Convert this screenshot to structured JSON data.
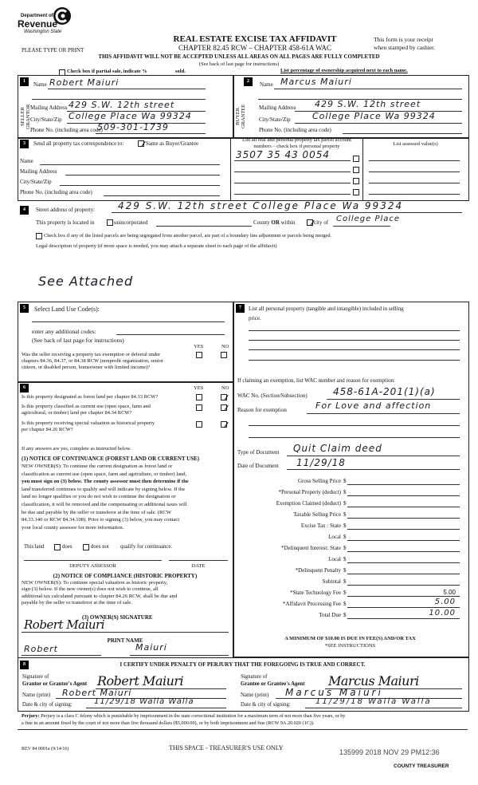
{
  "header": {
    "logo": {
      "line1": "Department of",
      "line2": "Revenue",
      "line3": "Washington State"
    },
    "title": "REAL ESTATE EXCISE TAX AFFIDAVIT",
    "subtitle": "CHAPTER 82.45 RCW – CHAPTER 458-61A WAC",
    "please_type": "PLEASE TYPE OR PRINT",
    "receipt_line1": "This form is your receipt",
    "receipt_line2": "when stamped by cashier.",
    "warning": "THIS AFFIDAVIT WILL NOT BE ACCEPTED UNLESS ALL AREAS ON ALL PAGES ARE FULLY COMPLETED",
    "see_back": "(See back of last page for instructions)",
    "partial_sale": "Check box if partial sale, indicate %",
    "sold": "sold.",
    "ownership_note": "List percentage of ownership acquired next to each name."
  },
  "section1": {
    "number": "1",
    "side_label_1": "SELLER",
    "side_label_2": "GRANTOR",
    "name_label": "Name",
    "name": "Robert Maiuri",
    "mailing_label": "Mailing Address",
    "mailing": "429 S.W. 12th street",
    "city_label": "City/State/Zip",
    "city": "College Place Wa 99324",
    "phone_label": "Phone No. (including area code)",
    "phone": "509-301-1739"
  },
  "section2": {
    "number": "2",
    "side_label_1": "BUYER",
    "side_label_2": "GRANTEE",
    "name_label": "Name",
    "name": "Marcus Maiuri",
    "mailing_label": "Mailing Address",
    "mailing": "429 S.W. 12th street",
    "city_label": "City/State/Zip",
    "city": "College Place Wa 99324",
    "phone_label": "Phone No. (including area code)"
  },
  "section3": {
    "number": "3",
    "send_label": "Send all property tax correspondence to:",
    "same_as_label": "Same as Buyer/Grantee",
    "same_as_checked": true,
    "name_label": "Name",
    "mailing_label": "Mailing Address",
    "city_label": "City/State/Zip",
    "phone_label": "Phone No. (including area code)",
    "parcel_header_1": "List all real and personal property tax parcel account",
    "parcel_header_2": "numbers – check box if personal property",
    "parcels": [
      "3507 35 43 0054",
      "",
      "",
      ""
    ],
    "assessed_header": "List assessed value(s)"
  },
  "section4": {
    "number": "4",
    "street_label": "Street address of property:",
    "street": "429 S.W. 12th street College Place Wa 99324",
    "located_label": "This property is located in",
    "unincorporated_label": "unincorporated",
    "county_label": "County",
    "or_label": "OR",
    "within_label": "within",
    "city_of_label": "city of",
    "city_checked": true,
    "city": "College Place",
    "segregated_label": "Check box if any of the listed parcels are being segregated from another parcel, are part of a boundary line adjustment or parcels being merged.",
    "legal_label": "Legal description of property (if more space is needed, you may attach a separate sheet to each page of the affidavit)",
    "legal": "See Attached"
  },
  "section5": {
    "number": "5",
    "title": "Select Land Use Code(s):",
    "additional_label": "enter any additional codes:",
    "see_back": "(See back of last page for instructions)",
    "yes": "YES",
    "no": "NO",
    "question_lines": [
      "Was the seller receiving a property tax exemption or deferral under",
      "chapters 84.36, 84.37, or 84.38 RCW (nonprofit organization, senior",
      "citizen, or disabled person, homeowner with limited income)?"
    ]
  },
  "section6": {
    "number": "6",
    "yes": "YES",
    "no": "NO",
    "questions": [
      {
        "lines": [
          "Is this property designated as forest land per chapter 84.33 RCW?"
        ],
        "answer": "no"
      },
      {
        "lines": [
          "Is this property classified as current use (open space, farm and",
          "agricultural, or timber) land per chapter 84.34 RCW?"
        ],
        "answer": "no"
      },
      {
        "lines": [
          "Is this property receiving special valuation as historical property",
          "per chapter 84.26 RCW?"
        ],
        "answer": "no"
      }
    ],
    "if_yes": "If any answers are yes, complete as instructed below.",
    "notice1_title": "(1) NOTICE OF CONTINUANCE  (FOREST LAND OR CURRENT USE)",
    "notice1_lines": [
      "NEW OWNER(S): To continue the current designation as forest land or",
      "classification as current use (open space, farm and agriculture, or timber) land,",
      "you must sign on (3) below. The county assessor must then determine if the",
      "land transferred continues to qualify and will indicate by signing below. If the",
      "land no longer qualifies or you do not wish to continue the designation or",
      "classification, it will be removed and the compensating or additional taxes will",
      "be due and payable by the seller or transferor at the time of sale. (RCW",
      "84.33.140 or RCW 84.34.108). Prior to signing (3) below, you may contact",
      "your local county assessor for more information."
    ],
    "this_land": "This land",
    "does": "does",
    "does_not": "does not",
    "qualify": "qualify for continuance.",
    "deputy_assessor": "DEPUTY ASSESSOR",
    "date": "DATE",
    "notice2_title": "(2) NOTICE OF COMPLIANCE (HISTORIC PROPERTY)",
    "notice2_lines": [
      "NEW OWNER(S): To continue special valuation as historic property,",
      "sign (3) below. If the new owner(s) does not wish to continue, all",
      "additional tax calculated pursuant to chapter 84.26 RCW, shall be due and",
      "payable by the seller or transferor at the time of sale."
    ],
    "owner_signature_label": "(3) OWNER(S) SIGNATURE",
    "owner_signature": "Robert Maiuri",
    "print_name_label": "PRINT NAME",
    "print_name_first": "Robert",
    "print_name_last": "Maiuri"
  },
  "section7": {
    "number": "7",
    "title_line1": "List all  personal property (tangible and intangible) included in selling",
    "title_line2": "price.",
    "exemption_intro": "If claiming an exemption, list WAC number and reason for exemption:",
    "wac_label": "WAC No. (Section/Subsection)",
    "wac": "458-61A-201(1)(a)",
    "reason_label": "Reason for exemption",
    "reason": "For Love and affection",
    "doc_type_label": "Type of Document",
    "doc_type": "Quit Claim deed",
    "doc_date_label": "Date of Document",
    "doc_date": "11/29/18",
    "fees": [
      {
        "label": "Gross Selling Price",
        "value": ""
      },
      {
        "label": "*Personal Property (deduct)",
        "value": ""
      },
      {
        "label": "Exemption Claimed (deduct)",
        "value": ""
      },
      {
        "label": "Taxable Selling Price",
        "value": ""
      },
      {
        "label": "Excise Tax : State",
        "value": ""
      },
      {
        "label": "Local",
        "value": ""
      },
      {
        "label": "*Delinquent Interest: State",
        "value": ""
      },
      {
        "label": "Local",
        "value": ""
      },
      {
        "label": "*Delinquent Penalty",
        "value": ""
      },
      {
        "label": "Subtotal",
        "value": ""
      },
      {
        "label": "*State Technology Fee",
        "value": "5.00"
      },
      {
        "label": "*Affidavit Processing Fee",
        "value": "5.00"
      },
      {
        "label": "Total Due",
        "value": "10.00"
      }
    ],
    "currency": "$",
    "minimum": "A MINIMUM OF $10.00 IS DUE IN FEE(S) AND/OR TAX",
    "see_instructions": "*SEE INSTRUCTIONS"
  },
  "section8": {
    "number": "8",
    "certify": "I CERTIFY UNDER PENALTY OF PERJURY THAT THE FOREGOING IS TRUE AND CORRECT.",
    "grantor": {
      "sig_label_1": "Signature of",
      "sig_label_2": "Grantor or Grantor's Agent",
      "signature": "Robert Maiuri",
      "name_label": "Name (print)",
      "name": "Robert Maiuri",
      "date_label": "Date & city of signing:",
      "date_city": "11/29/18 Walla Walla"
    },
    "grantee": {
      "sig_label_1": "Signature of",
      "sig_label_2": "Grantee or Grantee's Agent",
      "signature": "Marcus Maiuri",
      "name_label": "Name (print)",
      "name": "Marcus Maiuri",
      "date_label": "Date & city of signing:",
      "date_city": "11/29/18 Walla Walla"
    }
  },
  "footer": {
    "perjury_label": "Perjury:",
    "perjury_line1": "Perjury is a class C felony which is punishable by imprisonment in the state correctional institution for a maximum term of not more than five years, or by",
    "perjury_line2": "a fine in an amount fixed by the court of not more than five thousand dollars ($5,000.00), or by both imprisonment and fine (RCW 9A.20.020 (1C)).",
    "form_number": "REV 84 0001a (9/14/16)",
    "treasurer_space": "THIS SPACE - TREASURER'S USE ONLY",
    "stamp": "135999 2018 NOV 29 PM12:36",
    "county_treasurer": "COUNTY TREASURER"
  }
}
